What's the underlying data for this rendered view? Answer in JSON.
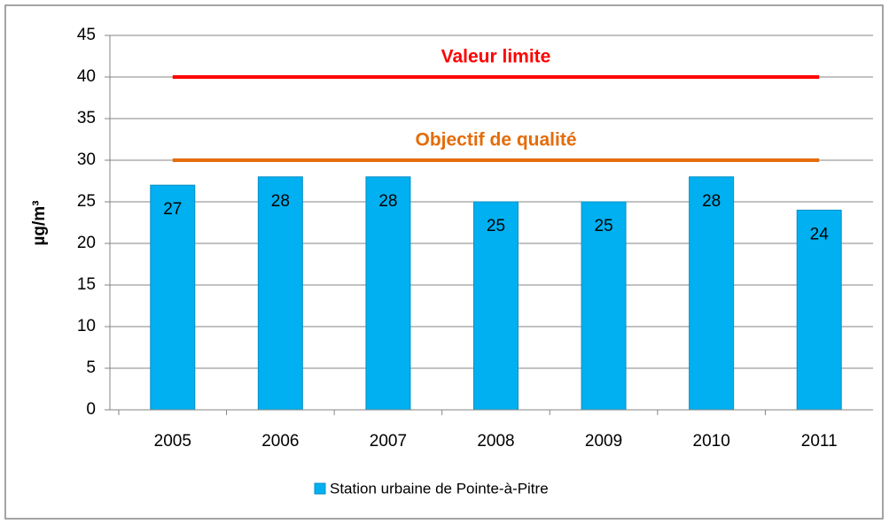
{
  "chart_data": {
    "type": "bar",
    "y_label": "µg/m³",
    "categories": [
      "2005",
      "2006",
      "2007",
      "2008",
      "2009",
      "2010",
      "2011"
    ],
    "series": [
      {
        "name": "Station urbaine de Pointe-à-Pitre",
        "color": "#00b0f0",
        "values": [
          27,
          28,
          28,
          25,
          25,
          28,
          24
        ]
      }
    ],
    "ylim": [
      0,
      45
    ],
    "yticks": [
      0,
      5,
      10,
      15,
      20,
      25,
      30,
      35,
      40,
      45
    ],
    "grid": true,
    "reference_lines": [
      {
        "label": "Valeur limite",
        "value": 40,
        "color": "#ff0000"
      },
      {
        "label": "Objectif de qualité",
        "value": 30,
        "color": "#e46c0a"
      }
    ],
    "legend": "bottom"
  }
}
